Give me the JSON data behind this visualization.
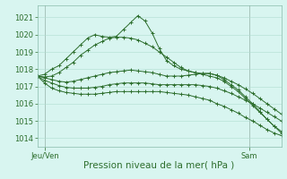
{
  "background_color": "#d8f5f0",
  "plot_bg_color": "#d8f5f0",
  "grid_color": "#b0ddd0",
  "line_color": "#2d6e2d",
  "marker_color": "#2d6e2d",
  "ylim": [
    1013.5,
    1021.7
  ],
  "yticks": [
    1014,
    1015,
    1016,
    1017,
    1018,
    1019,
    1020,
    1021
  ],
  "xlabel": "Pression niveau de la mer( hPa )",
  "xlabel_fontsize": 7.5,
  "tick_label_fontsize": 6,
  "x_tick_labels": [
    "Jeu/Ven",
    "Sam"
  ],
  "x_tick_positions": [
    0.03,
    0.87
  ],
  "series": [
    [
      1017.6,
      1017.7,
      1018.0,
      1018.2,
      1018.6,
      1019.0,
      1019.4,
      1019.8,
      1020.0,
      1019.9,
      1019.85,
      1019.9,
      1020.3,
      1020.7,
      1021.1,
      1020.8,
      1020.1,
      1019.2,
      1018.5,
      1018.2,
      1018.0,
      1017.9,
      1017.8,
      1017.7,
      1017.6,
      1017.5,
      1017.3,
      1017.0,
      1016.7,
      1016.3,
      1015.9,
      1015.5,
      1015.1,
      1014.7,
      1014.4
    ],
    [
      1017.6,
      1017.55,
      1017.6,
      1017.8,
      1018.1,
      1018.4,
      1018.8,
      1019.1,
      1019.4,
      1019.6,
      1019.8,
      1019.85,
      1019.85,
      1019.8,
      1019.7,
      1019.5,
      1019.3,
      1019.0,
      1018.7,
      1018.4,
      1018.1,
      1017.9,
      1017.8,
      1017.75,
      1017.75,
      1017.65,
      1017.4,
      1017.1,
      1016.8,
      1016.4,
      1016.0,
      1015.55,
      1015.1,
      1014.7,
      1014.3
    ],
    [
      1017.6,
      1017.5,
      1017.4,
      1017.3,
      1017.25,
      1017.3,
      1017.4,
      1017.5,
      1017.6,
      1017.7,
      1017.8,
      1017.85,
      1017.9,
      1017.95,
      1017.9,
      1017.85,
      1017.8,
      1017.7,
      1017.6,
      1017.6,
      1017.6,
      1017.65,
      1017.7,
      1017.75,
      1017.75,
      1017.65,
      1017.5,
      1017.3,
      1017.1,
      1016.85,
      1016.6,
      1016.3,
      1016.0,
      1015.7,
      1015.4
    ],
    [
      1017.6,
      1017.35,
      1017.2,
      1017.05,
      1016.95,
      1016.9,
      1016.9,
      1016.9,
      1016.95,
      1017.0,
      1017.1,
      1017.15,
      1017.2,
      1017.2,
      1017.2,
      1017.2,
      1017.15,
      1017.1,
      1017.1,
      1017.1,
      1017.1,
      1017.1,
      1017.1,
      1017.05,
      1017.0,
      1016.9,
      1016.75,
      1016.6,
      1016.4,
      1016.2,
      1016.0,
      1015.75,
      1015.5,
      1015.25,
      1015.0
    ],
    [
      1017.6,
      1017.2,
      1016.9,
      1016.75,
      1016.65,
      1016.6,
      1016.55,
      1016.55,
      1016.55,
      1016.6,
      1016.65,
      1016.7,
      1016.7,
      1016.7,
      1016.7,
      1016.7,
      1016.7,
      1016.7,
      1016.65,
      1016.6,
      1016.55,
      1016.5,
      1016.4,
      1016.3,
      1016.2,
      1016.0,
      1015.85,
      1015.65,
      1015.45,
      1015.2,
      1015.0,
      1014.75,
      1014.5,
      1014.3,
      1014.15
    ]
  ]
}
